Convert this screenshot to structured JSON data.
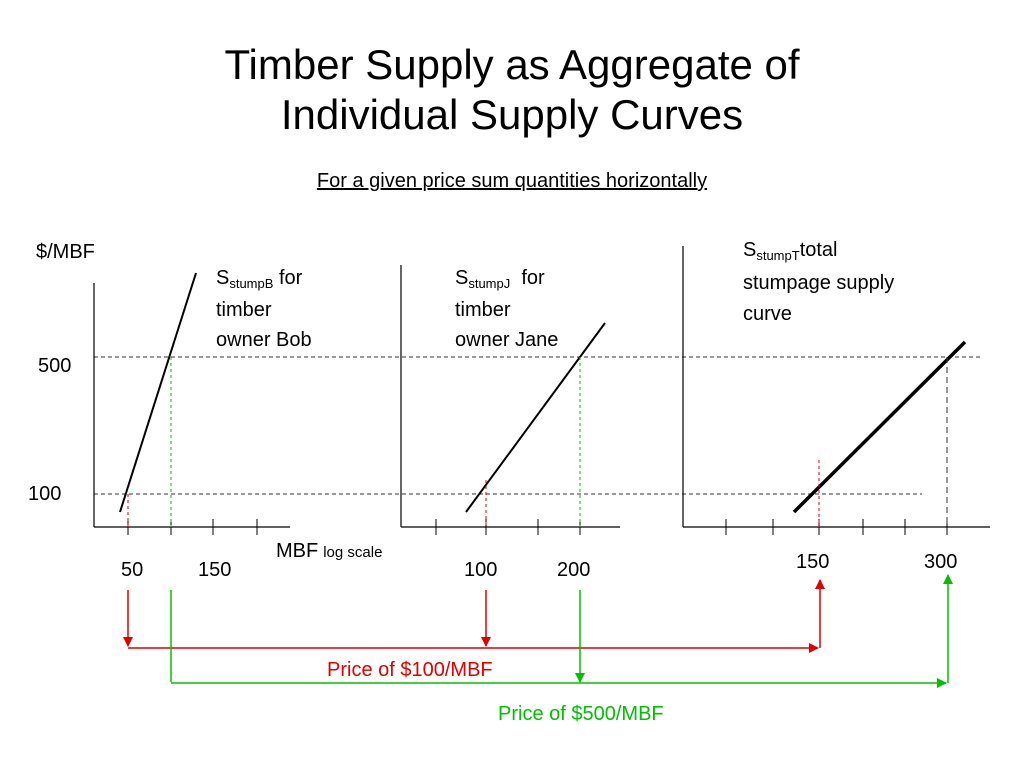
{
  "slide": {
    "title_line1": "Timber Supply as Aggregate of",
    "title_line2": "Individual Supply Curves",
    "subtitle": "For a given price sum quantities horizontally"
  },
  "axes": {
    "y_unit": "$/MBF",
    "y_tick_500": "500",
    "y_tick_100": "100",
    "x_unit": "MBF",
    "x_unit_note": "log scale"
  },
  "panel_bob": {
    "label_s": "S",
    "label_sub": "stumpB",
    "label_rest": " for",
    "label_line2": "timber",
    "label_line3": "owner Bob",
    "tick_50": "50",
    "tick_150": "150"
  },
  "panel_jane": {
    "label_s": "S",
    "label_sub": "stumpJ",
    "label_rest": "  for",
    "label_line2": "timber",
    "label_line3": "owner Jane",
    "tick_100": "100",
    "tick_200": "200"
  },
  "panel_total": {
    "label_s": "S",
    "label_sub": "stumpT",
    "label_rest": "total",
    "label_line2": "stumpage supply",
    "label_line3": "curve",
    "tick_150": "150",
    "tick_300": "300"
  },
  "legend": {
    "price_100": "Price of $100/MBF",
    "price_500": "Price of $500/MBF",
    "color_100": "#e00000",
    "color_500": "#00c000"
  }
}
